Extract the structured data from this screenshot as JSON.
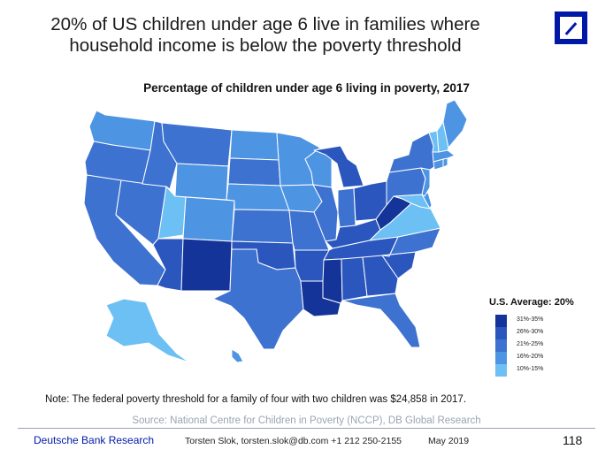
{
  "slide": {
    "title_line1": "20% of US children under age 6 live in families where",
    "title_line2": "household income is below the poverty threshold"
  },
  "map": {
    "title": "Percentage of children under age 6 living in poverty, 2017",
    "average_label": "U.S. Average: 20%",
    "legend": [
      {
        "label": "31%-35%",
        "color": "#14349a"
      },
      {
        "label": "26%-30%",
        "color": "#2a56be"
      },
      {
        "label": "21%-25%",
        "color": "#3e72d0"
      },
      {
        "label": "16%-20%",
        "color": "#4d94e2"
      },
      {
        "label": "10%-15%",
        "color": "#6cc0f4"
      }
    ],
    "states": {
      "WA": "16%-20%",
      "OR": "21%-25%",
      "CA": "21%-25%",
      "NV": "21%-25%",
      "ID": "21%-25%",
      "MT": "21%-25%",
      "WY": "16%-20%",
      "UT": "10%-15%",
      "AZ": "26%-30%",
      "NM": "31%-35%",
      "CO": "16%-20%",
      "ND": "16%-20%",
      "SD": "21%-25%",
      "NE": "16%-20%",
      "KS": "21%-25%",
      "OK": "26%-30%",
      "TX": "21%-25%",
      "MN": "16%-20%",
      "IA": "16%-20%",
      "MO": "21%-25%",
      "AR": "26%-30%",
      "LA": "31%-35%",
      "WI": "16%-20%",
      "IL": "21%-25%",
      "MI": "26%-30%",
      "IN": "21%-25%",
      "OH": "26%-30%",
      "KY": "26%-30%",
      "TN": "26%-30%",
      "MS": "31%-35%",
      "AL": "26%-30%",
      "GA": "26%-30%",
      "FL": "21%-25%",
      "SC": "26%-30%",
      "NC": "21%-25%",
      "VA": "10%-15%",
      "WV": "31%-35%",
      "PA": "21%-25%",
      "NY": "21%-25%",
      "ME": "16%-20%",
      "VT": "10%-15%",
      "NH": "10%-15%",
      "MA": "16%-20%",
      "CT": "16%-20%",
      "RI": "16%-20%",
      "NJ": "16%-20%",
      "DE": "16%-20%",
      "MD": "10%-15%",
      "AK": "10%-15%",
      "HI": "16%-20%"
    }
  },
  "note": "Note: The federal poverty threshold for a family of four with two children was $24,858 in 2017.",
  "source": "Source: National Centre for Children in Poverty (NCCP), DB Global Research",
  "footer": {
    "brand": "Deutsche Bank Research",
    "contact": "Torsten Slok, torsten.slok@db.com  +1 212 250-2155",
    "date": "May 2019",
    "page": "118"
  },
  "logo_icon": "deutsche-bank-logo-icon"
}
